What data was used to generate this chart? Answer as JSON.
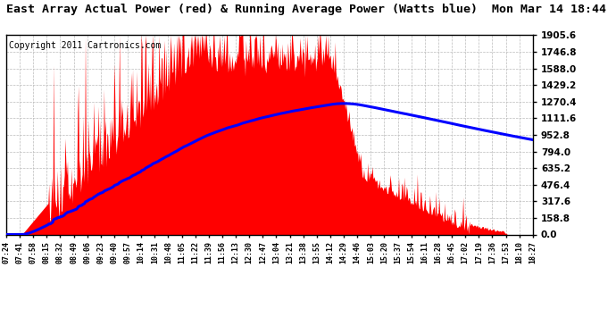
{
  "title": "East Array Actual Power (red) & Running Average Power (Watts blue)  Mon Mar 14 18:44",
  "copyright": "Copyright 2011 Cartronics.com",
  "y_ticks": [
    0.0,
    158.8,
    317.6,
    476.4,
    635.2,
    794.0,
    952.8,
    1111.6,
    1270.4,
    1429.2,
    1588.0,
    1746.8,
    1905.6
  ],
  "y_max": 1905.6,
  "y_min": 0.0,
  "x_labels": [
    "07:24",
    "07:41",
    "07:58",
    "08:15",
    "08:32",
    "08:49",
    "09:06",
    "09:23",
    "09:40",
    "09:57",
    "10:14",
    "10:31",
    "10:48",
    "11:05",
    "11:22",
    "11:39",
    "11:56",
    "12:13",
    "12:30",
    "12:47",
    "13:04",
    "13:21",
    "13:38",
    "13:55",
    "14:12",
    "14:29",
    "14:46",
    "15:03",
    "15:20",
    "15:37",
    "15:54",
    "16:11",
    "16:28",
    "16:45",
    "17:02",
    "17:19",
    "17:36",
    "17:53",
    "18:10",
    "18:27"
  ],
  "fill_color": "#FF0000",
  "line_color": "#0000FF",
  "bg_color": "#FFFFFF",
  "grid_color": "#BBBBBB",
  "title_fontsize": 9.5,
  "copyright_fontsize": 7
}
